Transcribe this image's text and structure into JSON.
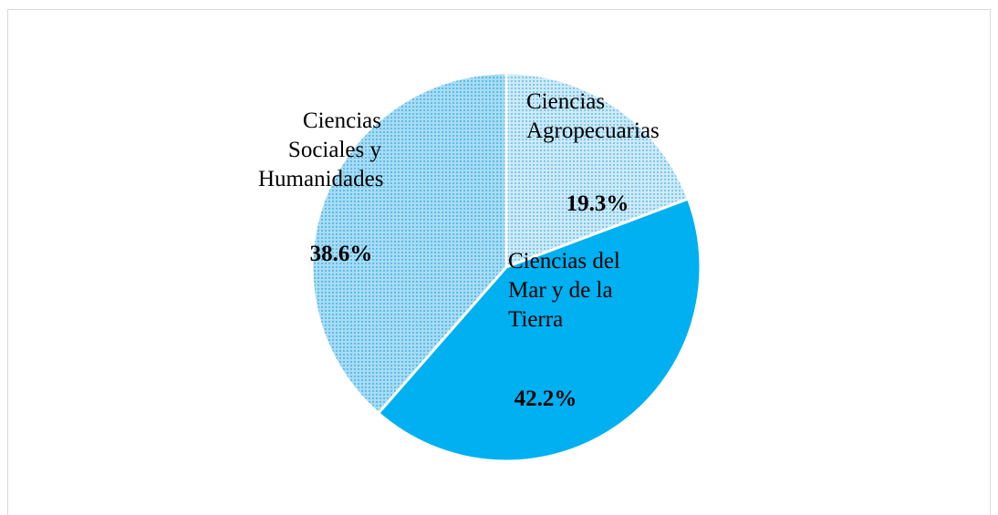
{
  "chart_data": {
    "type": "pie",
    "categories": [
      "Ciencias Agropecuarias",
      "Ciencias del Mar y de la Tierra",
      "Ciencias Sociales y Humanidades"
    ],
    "values": [
      19.3,
      42.2,
      38.6
    ],
    "value_labels": [
      "19.3%",
      "42.2%",
      "38.6%"
    ],
    "colors": [
      "#a9daf2",
      "#00b0f0",
      "#8fd0f0"
    ]
  }
}
